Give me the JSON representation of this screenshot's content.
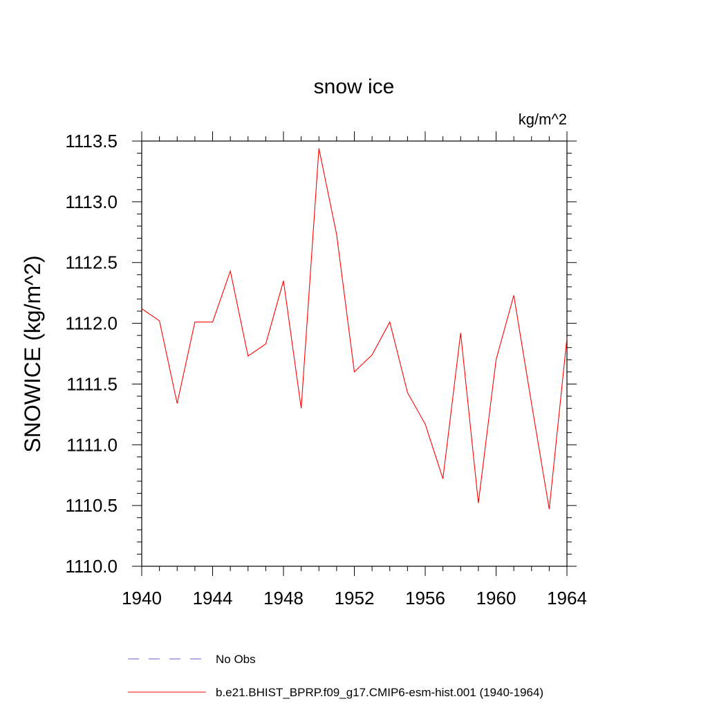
{
  "chart_data": {
    "type": "line",
    "title": "snow ice",
    "units_label": "kg/m^2",
    "ylabel": "SNOWICE  (kg/m^2)",
    "xlabel": "",
    "xlim": [
      1940,
      1964
    ],
    "ylim": [
      1110.0,
      1113.5
    ],
    "x_ticks": [
      1940,
      1944,
      1948,
      1952,
      1956,
      1960,
      1964
    ],
    "x_tick_labels": [
      "1940",
      "1944",
      "1948",
      "1952",
      "1956",
      "1960",
      "1964"
    ],
    "y_ticks": [
      1110.0,
      1110.5,
      1111.0,
      1111.5,
      1112.0,
      1112.5,
      1113.0,
      1113.5
    ],
    "y_tick_labels": [
      "1110.0",
      "1110.5",
      "1111.0",
      "1111.5",
      "1112.0",
      "1112.5",
      "1113.0",
      "1113.5"
    ],
    "grid": false,
    "legend_position": "bottom",
    "series": [
      {
        "name": "No Obs",
        "color": "#6a5acd",
        "style": "dashed",
        "x": [],
        "values": []
      },
      {
        "name": "b.e21.BHIST_BPRP.f09_g17.CMIP6-esm-hist.001 (1940-1964)",
        "color": "#ff0000",
        "style": "solid",
        "x": [
          1940,
          1941,
          1942,
          1943,
          1944,
          1945,
          1946,
          1947,
          1948,
          1949,
          1950,
          1951,
          1952,
          1953,
          1954,
          1955,
          1956,
          1957,
          1958,
          1959,
          1960,
          1961,
          1962,
          1963,
          1964
        ],
        "values": [
          1112.12,
          1112.02,
          1111.34,
          1112.01,
          1112.01,
          1112.43,
          1111.73,
          1111.83,
          1112.35,
          1111.3,
          1113.44,
          1112.73,
          1111.6,
          1111.74,
          1112.01,
          1111.43,
          1111.17,
          1110.72,
          1111.92,
          1110.52,
          1111.7,
          1112.23,
          1111.34,
          1110.47,
          1111.88
        ]
      }
    ]
  }
}
